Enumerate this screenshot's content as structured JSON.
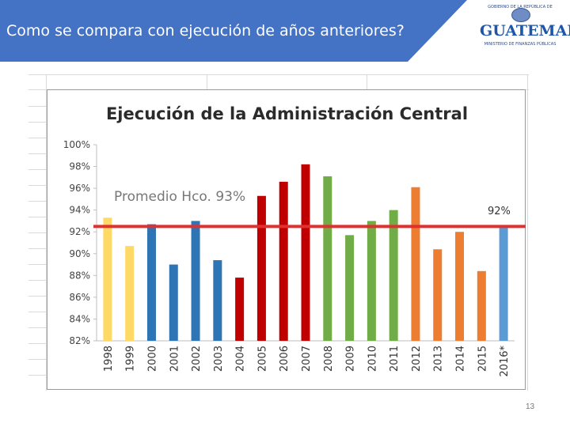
{
  "header": {
    "title": "Como se compara con ejecución de años anteriores?",
    "band_color": "#4472c4"
  },
  "logo": {
    "top_text": "GOBIERNO DE LA REPÚBLICA DE",
    "main_text": "GUATEMALA",
    "sub_text": "MINISTERIO DE FINANZAS PÚBLICAS"
  },
  "page_number": "13",
  "chart_data": {
    "type": "bar",
    "title": "Ejecución de la Administración Central",
    "categories": [
      "1998",
      "1999",
      "2000",
      "2001",
      "2002",
      "2003",
      "2004",
      "2005",
      "2006",
      "2007",
      "2008",
      "2009",
      "2010",
      "2011",
      "2012",
      "2013",
      "2014",
      "2015",
      "2016*"
    ],
    "values": [
      93.3,
      90.7,
      92.7,
      89.0,
      93.0,
      89.4,
      87.8,
      95.3,
      96.6,
      98.2,
      97.1,
      91.7,
      93.0,
      94.0,
      96.1,
      90.4,
      92.0,
      88.4,
      92.5
    ],
    "colors": [
      "#ffd966",
      "#ffd966",
      "#2e75b6",
      "#2e75b6",
      "#2e75b6",
      "#2e75b6",
      "#c00000",
      "#c00000",
      "#c00000",
      "#c00000",
      "#70ad47",
      "#70ad47",
      "#70ad47",
      "#70ad47",
      "#ed7d31",
      "#ed7d31",
      "#ed7d31",
      "#ed7d31",
      "#5b9bd5"
    ],
    "ylim": [
      82,
      100
    ],
    "yticks": [
      82,
      84,
      86,
      88,
      90,
      92,
      94,
      96,
      98,
      100
    ],
    "ytick_labels": [
      "82%",
      "84%",
      "86%",
      "88%",
      "90%",
      "92%",
      "94%",
      "96%",
      "98%",
      "100%"
    ],
    "reference_line": {
      "value": 92.5,
      "color": "#e03030"
    },
    "annotations": {
      "average": "Promedio Hco. 93%",
      "line_label": "92%"
    },
    "xlabel": "",
    "ylabel": ""
  }
}
